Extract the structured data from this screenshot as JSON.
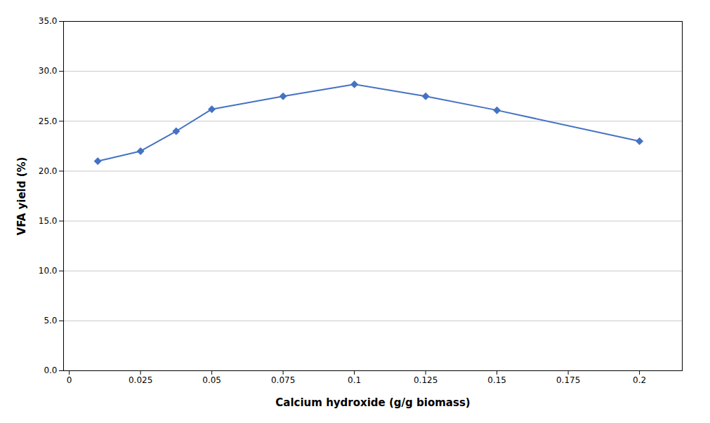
{
  "chart_data": {
    "type": "line",
    "x": [
      0.01,
      0.025,
      0.0375,
      0.05,
      0.075,
      0.1,
      0.125,
      0.15,
      0.2
    ],
    "values": [
      21.0,
      22.0,
      24.0,
      26.2,
      27.5,
      28.7,
      27.5,
      26.1,
      23.0
    ],
    "color": "#4472C4",
    "marker": "diamond",
    "xlabel": "Calcium hydroxide (g/g biomass)",
    "ylabel": "VFA yield (%)",
    "xlim": [
      -0.002,
      0.215
    ],
    "ylim": [
      0.0,
      35.0
    ],
    "xticks": [
      0,
      0.025,
      0.05,
      0.075,
      0.1,
      0.125,
      0.15,
      0.175,
      0.2
    ],
    "yticks": [
      {
        "value": 0,
        "label": "0.0"
      },
      {
        "value": 5,
        "label": "5.0"
      },
      {
        "value": 10,
        "label": "10.0"
      },
      {
        "value": 15,
        "label": "15.0"
      },
      {
        "value": 20,
        "label": "20.0"
      },
      {
        "value": 25,
        "label": "25.0"
      },
      {
        "value": 30,
        "label": "30.0"
      },
      {
        "value": 35,
        "label": "35.0"
      }
    ],
    "grid": "y"
  }
}
